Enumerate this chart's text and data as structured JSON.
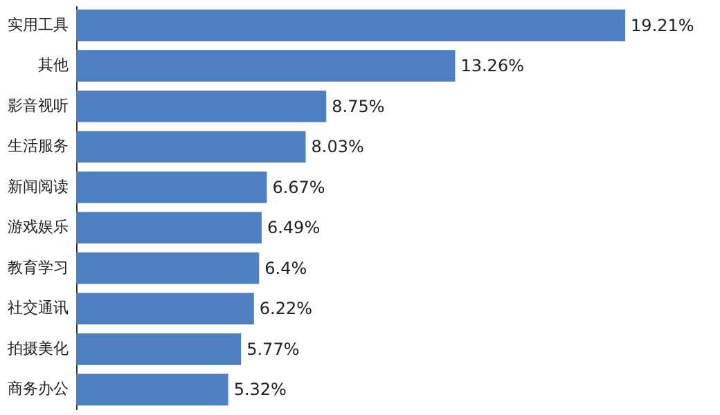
{
  "chart_data": {
    "type": "bar",
    "orientation": "horizontal",
    "categories": [
      "实用工具",
      "其他",
      "影音视听",
      "生活服务",
      "新闻阅读",
      "游戏娱乐",
      "教育学习",
      "社交通讯",
      "拍摄美化",
      "商务办公"
    ],
    "values": [
      19.21,
      13.26,
      8.75,
      8.03,
      6.67,
      6.49,
      6.4,
      6.22,
      5.77,
      5.32
    ],
    "value_labels": [
      "19.21%",
      "13.26%",
      "8.75%",
      "8.03%",
      "6.67%",
      "6.49%",
      "6.4%",
      "6.22%",
      "5.77%",
      "5.32%"
    ],
    "color": "#4e7fc0",
    "data_labels": true
  }
}
